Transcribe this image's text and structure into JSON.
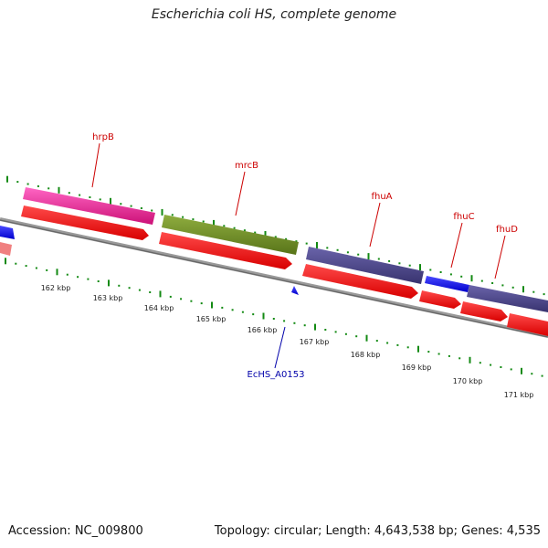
{
  "title": "Escherichia coli HS, complete genome",
  "footer": {
    "accession": "Accession: NC_009800",
    "summary": "Topology: circular; Length: 4,643,538 bp; Genes: 4,535"
  },
  "ticks": [
    "162 kbp",
    "163 kbp",
    "164 kbp",
    "165 kbp",
    "166 kbp",
    "167 kbp",
    "168 kbp",
    "169 kbp",
    "170 kbp",
    "171 kbp"
  ],
  "features": {
    "hrpB": {
      "label": "hrpB",
      "color": "#cc0000"
    },
    "mrcB": {
      "label": "mrcB",
      "color": "#cc0000"
    },
    "fhuA": {
      "label": "fhuA",
      "color": "#cc0000"
    },
    "fhuC": {
      "label": "fhuC",
      "color": "#cc0000"
    },
    "fhuD": {
      "label": "fhuD",
      "color": "#cc0000"
    },
    "EcHS_A0153": {
      "label": "EcHS_A0153",
      "color": "#0000aa"
    }
  },
  "colors": {
    "cds": "#ff0000",
    "pink": "#ee2299",
    "olive": "#6b8a23",
    "slate": "#4a4588",
    "blue": "#1a1aee",
    "salmon": "#f08080",
    "backbone": "#888888",
    "gc": "#138a13"
  }
}
